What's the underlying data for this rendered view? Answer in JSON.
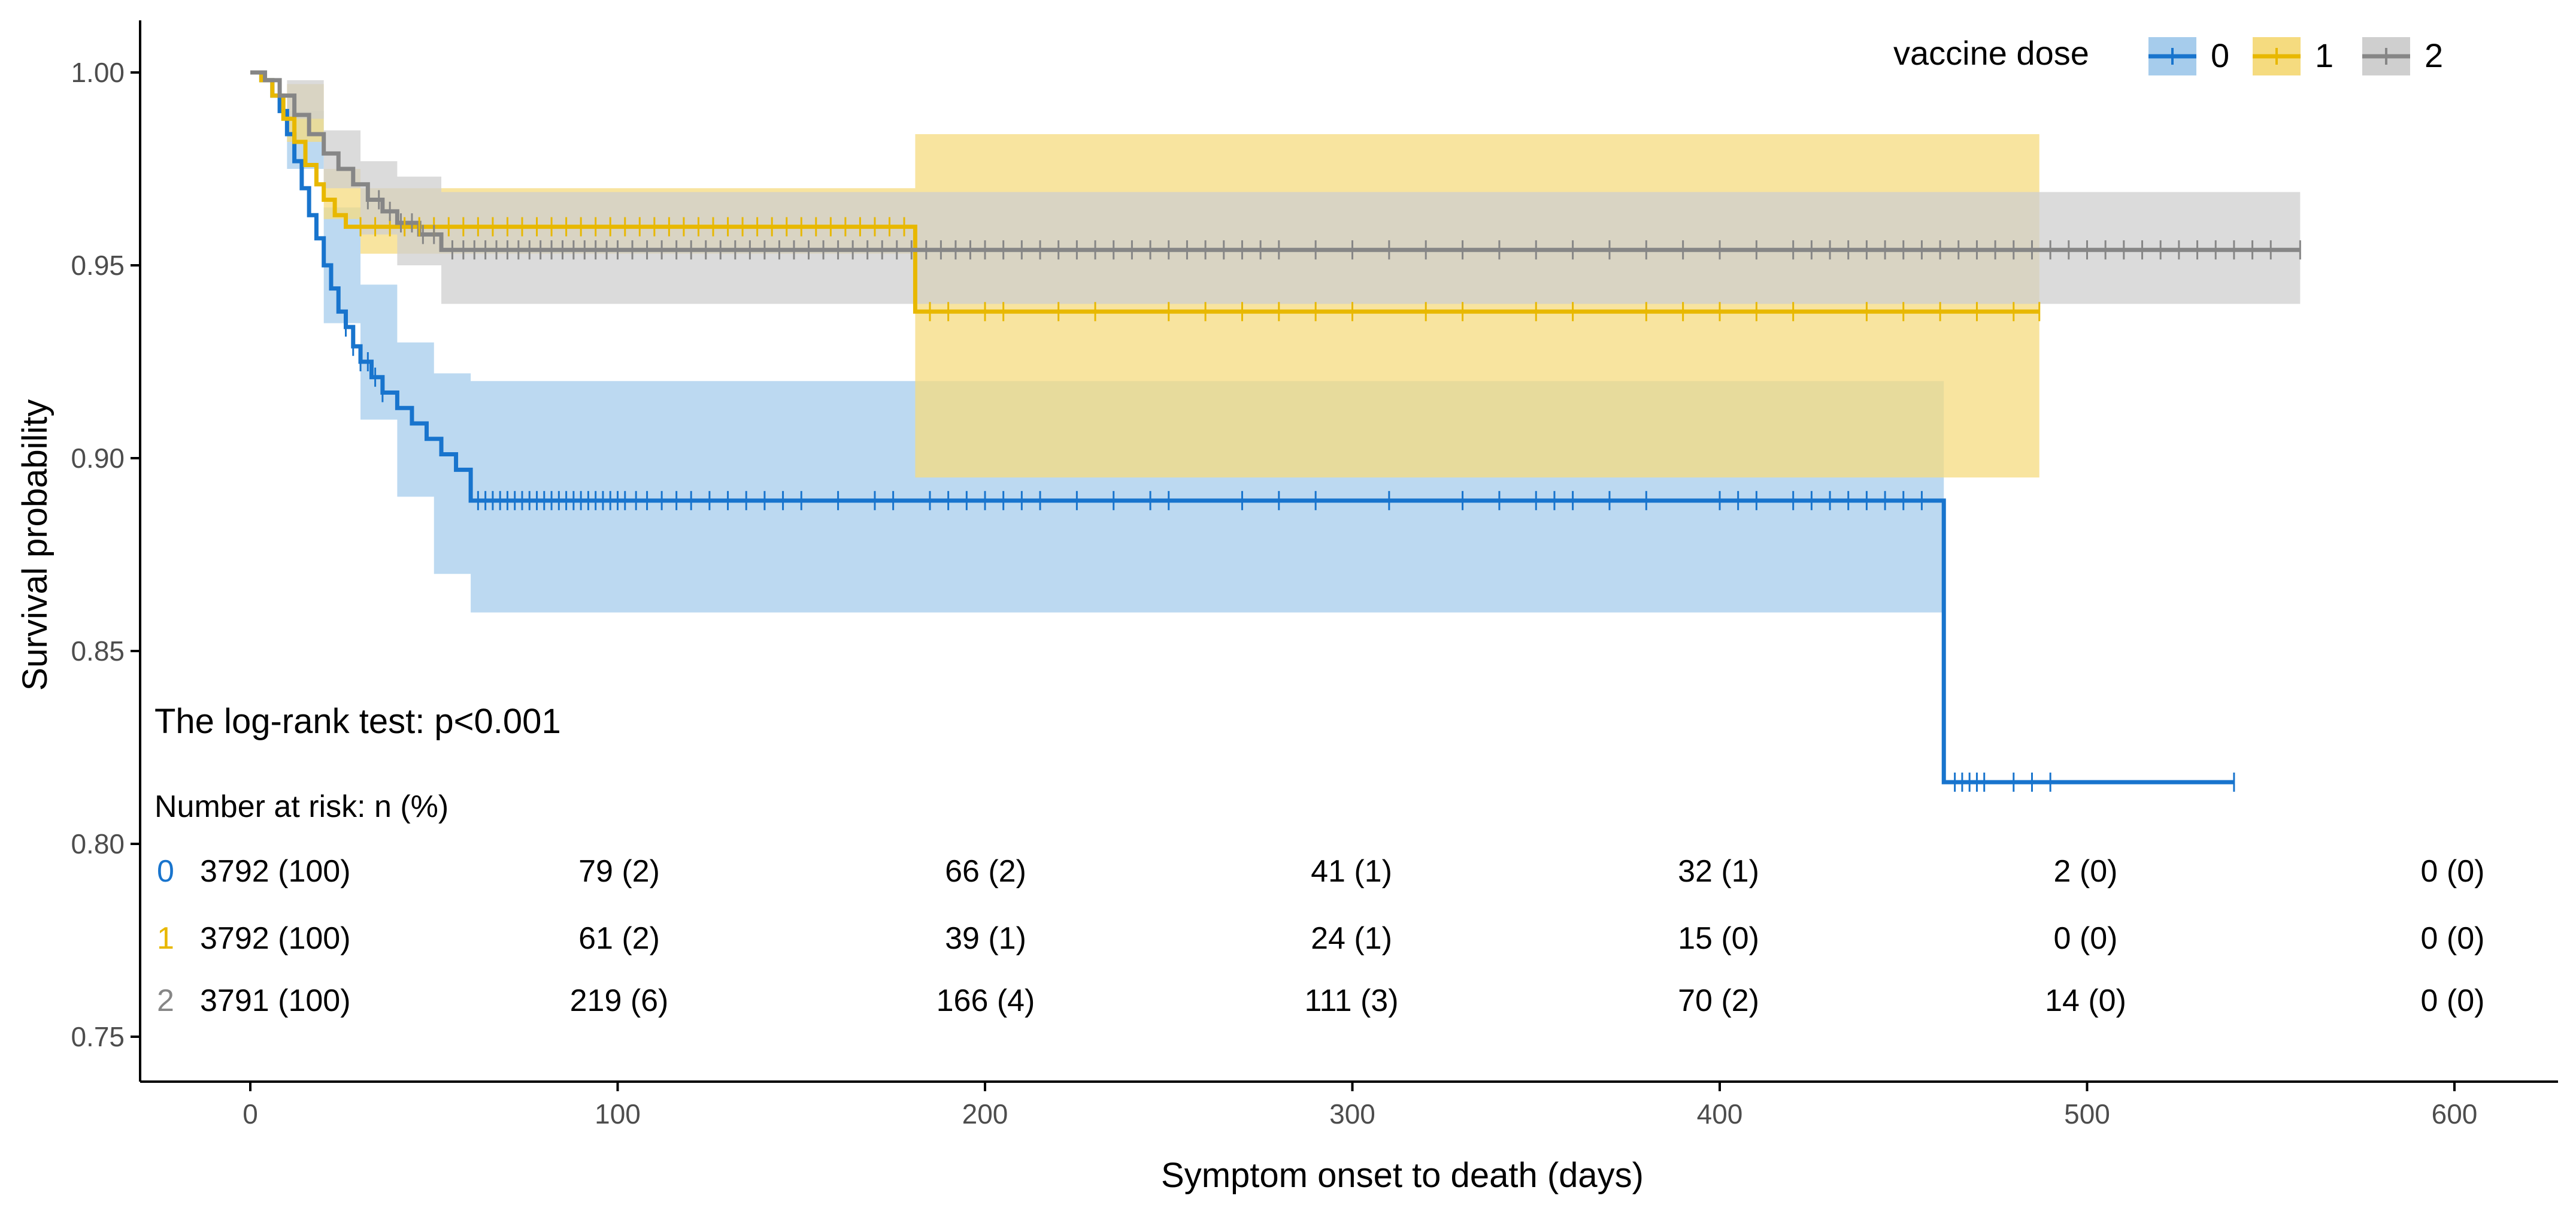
{
  "chart_data": {
    "type": "line",
    "subtype": "kaplan-meier",
    "xlabel": "Symptom onset to death (days)",
    "ylabel": "Survival probability",
    "xlim": [
      -30,
      630
    ],
    "ylim": [
      0.742,
      1.013
    ],
    "x_ticks": [
      0,
      100,
      200,
      300,
      400,
      500,
      600
    ],
    "x_tick_labels": [
      "0",
      "100",
      "200",
      "300",
      "400",
      "500",
      "600"
    ],
    "y_ticks": [
      0.75,
      0.8,
      0.85,
      0.9,
      0.95,
      1.0
    ],
    "y_tick_labels": [
      "0.75",
      "0.80",
      "0.85",
      "0.90",
      "0.95",
      "1.00"
    ],
    "legend": {
      "title": "vaccine dose",
      "position": "top-right"
    },
    "annotation": "The log-rank test: p<0.001",
    "risk_table": {
      "title": "Number at risk: n (%)",
      "times": [
        0,
        100,
        200,
        300,
        400,
        500,
        600
      ],
      "rows": [
        {
          "group": "0",
          "color": "#1874CD",
          "cells": [
            "3792 (100)",
            "79 (2)",
            "66 (2)",
            "41 (1)",
            "32 (1)",
            "2 (0)",
            "0 (0)"
          ]
        },
        {
          "group": "1",
          "color": "#E8B800",
          "cells": [
            "3792 (100)",
            "61 (2)",
            "39 (1)",
            "24 (1)",
            "15 (0)",
            "0 (0)",
            "0 (0)"
          ]
        },
        {
          "group": "2",
          "color": "#868686",
          "cells": [
            "3791 (100)",
            "219 (6)",
            "166 (4)",
            "111 (3)",
            "70 (2)",
            "14 (0)",
            "0 (0)"
          ]
        }
      ]
    },
    "series": [
      {
        "name": "0",
        "color": "#1874CD",
        "band_color": "#A6CCEC",
        "steps": [
          [
            0,
            1.0
          ],
          [
            3,
            0.998
          ],
          [
            6,
            0.994
          ],
          [
            8,
            0.99
          ],
          [
            10,
            0.984
          ],
          [
            12,
            0.977
          ],
          [
            14,
            0.97
          ],
          [
            16,
            0.963
          ],
          [
            18,
            0.957
          ],
          [
            20,
            0.95
          ],
          [
            22,
            0.944
          ],
          [
            24,
            0.938
          ],
          [
            26,
            0.934
          ],
          [
            28,
            0.929
          ],
          [
            30,
            0.925
          ],
          [
            33,
            0.921
          ],
          [
            36,
            0.917
          ],
          [
            40,
            0.913
          ],
          [
            44,
            0.909
          ],
          [
            48,
            0.905
          ],
          [
            52,
            0.901
          ],
          [
            56,
            0.897
          ],
          [
            60,
            0.889
          ],
          [
            461,
            0.889
          ],
          [
            461,
            0.816
          ],
          [
            540,
            0.816
          ]
        ],
        "ci_lower": [
          [
            0,
            1.0
          ],
          [
            10,
            0.975
          ],
          [
            20,
            0.935
          ],
          [
            30,
            0.91
          ],
          [
            40,
            0.89
          ],
          [
            50,
            0.87
          ],
          [
            60,
            0.86
          ],
          [
            461,
            0.86
          ]
        ],
        "ci_upper": [
          [
            0,
            1.0
          ],
          [
            10,
            0.99
          ],
          [
            20,
            0.965
          ],
          [
            30,
            0.945
          ],
          [
            40,
            0.93
          ],
          [
            50,
            0.922
          ],
          [
            60,
            0.92
          ],
          [
            461,
            0.92
          ]
        ],
        "censor_times": [
          26,
          28,
          30,
          32,
          34,
          36,
          62,
          64,
          66,
          68,
          70,
          72,
          74,
          76,
          78,
          80,
          82,
          84,
          86,
          88,
          90,
          92,
          94,
          96,
          98,
          100,
          102,
          105,
          108,
          112,
          116,
          120,
          125,
          130,
          135,
          140,
          145,
          150,
          160,
          170,
          175,
          185,
          190,
          195,
          200,
          205,
          210,
          215,
          225,
          235,
          245,
          250,
          270,
          280,
          290,
          310,
          330,
          340,
          350,
          355,
          360,
          370,
          380,
          400,
          405,
          410,
          420,
          425,
          430,
          435,
          440,
          445,
          450,
          455,
          464,
          466,
          468,
          470,
          472,
          480,
          485,
          490,
          540
        ]
      },
      {
        "name": "1",
        "color": "#E8B800",
        "band_color": "#F5DB7F",
        "steps": [
          [
            0,
            1.0
          ],
          [
            3,
            0.998
          ],
          [
            6,
            0.994
          ],
          [
            9,
            0.988
          ],
          [
            12,
            0.982
          ],
          [
            15,
            0.976
          ],
          [
            18,
            0.971
          ],
          [
            20,
            0.967
          ],
          [
            23,
            0.963
          ],
          [
            26,
            0.96
          ],
          [
            181,
            0.96
          ],
          [
            181,
            0.938
          ],
          [
            487,
            0.938
          ]
        ],
        "ci_lower": [
          [
            0,
            1.0
          ],
          [
            10,
            0.982
          ],
          [
            20,
            0.962
          ],
          [
            30,
            0.953
          ],
          [
            181,
            0.953
          ],
          [
            181,
            0.895
          ],
          [
            487,
            0.895
          ]
        ],
        "ci_upper": [
          [
            0,
            1.0
          ],
          [
            10,
            0.997
          ],
          [
            20,
            0.975
          ],
          [
            30,
            0.97
          ],
          [
            181,
            0.97
          ],
          [
            181,
            0.984
          ],
          [
            487,
            0.984
          ]
        ],
        "censor_times": [
          30,
          34,
          38,
          42,
          46,
          50,
          54,
          58,
          62,
          66,
          70,
          74,
          78,
          82,
          86,
          90,
          94,
          98,
          102,
          106,
          110,
          114,
          118,
          122,
          126,
          130,
          134,
          138,
          142,
          146,
          150,
          154,
          158,
          162,
          166,
          170,
          174,
          178,
          185,
          190,
          200,
          205,
          220,
          230,
          250,
          260,
          270,
          280,
          290,
          300,
          320,
          330,
          350,
          360,
          380,
          390,
          400,
          410,
          420,
          440,
          450,
          460,
          470,
          480,
          487
        ]
      },
      {
        "name": "2",
        "color": "#868686",
        "band_color": "#CFCFCF",
        "steps": [
          [
            0,
            1.0
          ],
          [
            4,
            0.998
          ],
          [
            8,
            0.994
          ],
          [
            12,
            0.989
          ],
          [
            16,
            0.984
          ],
          [
            20,
            0.979
          ],
          [
            24,
            0.975
          ],
          [
            28,
            0.971
          ],
          [
            32,
            0.967
          ],
          [
            36,
            0.964
          ],
          [
            40,
            0.961
          ],
          [
            46,
            0.958
          ],
          [
            52,
            0.954
          ],
          [
            558,
            0.954
          ]
        ],
        "ci_lower": [
          [
            0,
            1.0
          ],
          [
            10,
            0.988
          ],
          [
            20,
            0.97
          ],
          [
            30,
            0.958
          ],
          [
            40,
            0.95
          ],
          [
            52,
            0.94
          ],
          [
            558,
            0.94
          ]
        ],
        "ci_upper": [
          [
            0,
            1.0
          ],
          [
            10,
            0.998
          ],
          [
            20,
            0.985
          ],
          [
            30,
            0.977
          ],
          [
            40,
            0.973
          ],
          [
            52,
            0.969
          ],
          [
            558,
            0.969
          ]
        ],
        "censor_times": [
          32,
          35,
          38,
          41,
          44,
          47,
          50,
          55,
          58,
          61,
          64,
          67,
          70,
          73,
          76,
          79,
          82,
          85,
          88,
          91,
          94,
          97,
          100,
          104,
          108,
          112,
          116,
          120,
          124,
          128,
          132,
          136,
          140,
          144,
          148,
          152,
          156,
          160,
          164,
          168,
          172,
          176,
          180,
          184,
          188,
          192,
          196,
          200,
          205,
          210,
          215,
          220,
          225,
          230,
          235,
          240,
          245,
          250,
          255,
          260,
          265,
          270,
          275,
          280,
          290,
          300,
          310,
          320,
          330,
          340,
          350,
          360,
          370,
          380,
          390,
          400,
          410,
          420,
          425,
          430,
          435,
          440,
          445,
          450,
          455,
          460,
          465,
          470,
          475,
          480,
          485,
          490,
          495,
          500,
          505,
          510,
          515,
          520,
          525,
          530,
          535,
          540,
          545,
          550,
          558
        ]
      }
    ]
  }
}
